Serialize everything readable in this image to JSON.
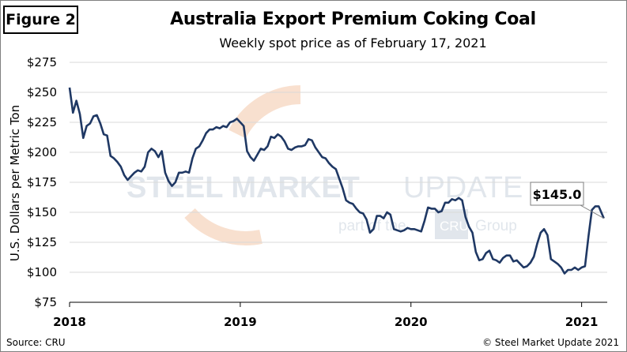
{
  "figure_label": "Figure 2",
  "chart_data": {
    "type": "line",
    "title": "Australia Export Premium Coking Coal",
    "subtitle": "Weekly spot price as of February 17, 2021",
    "ylabel": "U.S. Dollars per Metric Ton",
    "ylim": [
      75,
      275
    ],
    "yticks": [
      "$275",
      "$250",
      "$225",
      "$200",
      "$175",
      "$150",
      "$125",
      "$100",
      "$75"
    ],
    "ytick_values": [
      275,
      250,
      225,
      200,
      175,
      150,
      125,
      100,
      75
    ],
    "xlim": [
      2018.0,
      2021.15
    ],
    "xticks": [
      "2018",
      "2019",
      "2020",
      "2021"
    ],
    "xtick_values": [
      2018,
      2019,
      2020,
      2021
    ],
    "grid": "horizontal",
    "series": [
      {
        "color": "#1f3864",
        "points": [
          [
            2018.0,
            254
          ],
          [
            2018.02,
            233
          ],
          [
            2018.04,
            243
          ],
          [
            2018.06,
            232
          ],
          [
            2018.08,
            212
          ],
          [
            2018.1,
            222
          ],
          [
            2018.12,
            224
          ],
          [
            2018.14,
            230
          ],
          [
            2018.16,
            231
          ],
          [
            2018.18,
            224
          ],
          [
            2018.2,
            215
          ],
          [
            2018.22,
            214
          ],
          [
            2018.24,
            197
          ],
          [
            2018.26,
            195
          ],
          [
            2018.28,
            192
          ],
          [
            2018.3,
            188
          ],
          [
            2018.32,
            181
          ],
          [
            2018.34,
            177
          ],
          [
            2018.36,
            180
          ],
          [
            2018.38,
            183
          ],
          [
            2018.4,
            185
          ],
          [
            2018.42,
            184
          ],
          [
            2018.44,
            188
          ],
          [
            2018.46,
            200
          ],
          [
            2018.48,
            203
          ],
          [
            2018.5,
            201
          ],
          [
            2018.52,
            196
          ],
          [
            2018.54,
            201
          ],
          [
            2018.56,
            183
          ],
          [
            2018.58,
            176
          ],
          [
            2018.6,
            172
          ],
          [
            2018.62,
            175
          ],
          [
            2018.64,
            183
          ],
          [
            2018.66,
            183
          ],
          [
            2018.68,
            184
          ],
          [
            2018.7,
            183
          ],
          [
            2018.72,
            195
          ],
          [
            2018.74,
            203
          ],
          [
            2018.76,
            205
          ],
          [
            2018.78,
            210
          ],
          [
            2018.8,
            216
          ],
          [
            2018.82,
            219
          ],
          [
            2018.84,
            219
          ],
          [
            2018.86,
            221
          ],
          [
            2018.88,
            220
          ],
          [
            2018.9,
            222
          ],
          [
            2018.92,
            221
          ],
          [
            2018.94,
            225
          ],
          [
            2018.96,
            226
          ],
          [
            2018.98,
            228
          ],
          [
            2019.0,
            225
          ],
          [
            2019.02,
            222
          ],
          [
            2019.04,
            201
          ],
          [
            2019.06,
            196
          ],
          [
            2019.08,
            193
          ],
          [
            2019.1,
            198
          ],
          [
            2019.12,
            203
          ],
          [
            2019.14,
            202
          ],
          [
            2019.16,
            205
          ],
          [
            2019.18,
            213
          ],
          [
            2019.2,
            212
          ],
          [
            2019.22,
            215
          ],
          [
            2019.24,
            213
          ],
          [
            2019.26,
            209
          ],
          [
            2019.28,
            203
          ],
          [
            2019.3,
            202
          ],
          [
            2019.32,
            204
          ],
          [
            2019.34,
            205
          ],
          [
            2019.36,
            205
          ],
          [
            2019.38,
            206
          ],
          [
            2019.4,
            211
          ],
          [
            2019.42,
            210
          ],
          [
            2019.44,
            204
          ],
          [
            2019.46,
            200
          ],
          [
            2019.48,
            196
          ],
          [
            2019.5,
            195
          ],
          [
            2019.52,
            191
          ],
          [
            2019.54,
            188
          ],
          [
            2019.56,
            186
          ],
          [
            2019.58,
            178
          ],
          [
            2019.6,
            170
          ],
          [
            2019.62,
            160
          ],
          [
            2019.64,
            158
          ],
          [
            2019.66,
            157
          ],
          [
            2019.68,
            153
          ],
          [
            2019.7,
            150
          ],
          [
            2019.72,
            149
          ],
          [
            2019.74,
            144
          ],
          [
            2019.76,
            133
          ],
          [
            2019.78,
            136
          ],
          [
            2019.8,
            147
          ],
          [
            2019.82,
            147
          ],
          [
            2019.84,
            145
          ],
          [
            2019.86,
            150
          ],
          [
            2019.88,
            148
          ],
          [
            2019.9,
            136
          ],
          [
            2019.92,
            135
          ],
          [
            2019.94,
            134
          ],
          [
            2019.96,
            135
          ],
          [
            2019.98,
            137
          ],
          [
            2020.0,
            136
          ],
          [
            2020.02,
            136
          ],
          [
            2020.04,
            135
          ],
          [
            2020.06,
            134
          ],
          [
            2020.08,
            143
          ],
          [
            2020.1,
            154
          ],
          [
            2020.12,
            153
          ],
          [
            2020.14,
            153
          ],
          [
            2020.16,
            150
          ],
          [
            2020.18,
            151
          ],
          [
            2020.2,
            158
          ],
          [
            2020.22,
            158
          ],
          [
            2020.24,
            161
          ],
          [
            2020.26,
            160
          ],
          [
            2020.28,
            162
          ],
          [
            2020.3,
            160
          ],
          [
            2020.32,
            146
          ],
          [
            2020.34,
            138
          ],
          [
            2020.36,
            133
          ],
          [
            2020.38,
            117
          ],
          [
            2020.4,
            110
          ],
          [
            2020.42,
            111
          ],
          [
            2020.44,
            116
          ],
          [
            2020.46,
            118
          ],
          [
            2020.48,
            111
          ],
          [
            2020.5,
            110
          ],
          [
            2020.52,
            108
          ],
          [
            2020.54,
            112
          ],
          [
            2020.56,
            114
          ],
          [
            2020.58,
            114
          ],
          [
            2020.6,
            109
          ],
          [
            2020.62,
            110
          ],
          [
            2020.64,
            107
          ],
          [
            2020.66,
            104
          ],
          [
            2020.68,
            105
          ],
          [
            2020.7,
            108
          ],
          [
            2020.72,
            113
          ],
          [
            2020.74,
            124
          ],
          [
            2020.76,
            133
          ],
          [
            2020.78,
            136
          ],
          [
            2020.8,
            131
          ],
          [
            2020.82,
            111
          ],
          [
            2020.84,
            109
          ],
          [
            2020.86,
            107
          ],
          [
            2020.88,
            104
          ],
          [
            2020.9,
            99
          ],
          [
            2020.92,
            102
          ],
          [
            2020.94,
            102
          ],
          [
            2020.96,
            104
          ],
          [
            2020.98,
            102
          ],
          [
            2021.0,
            104
          ],
          [
            2021.02,
            105
          ],
          [
            2021.04,
            130
          ],
          [
            2021.06,
            152
          ],
          [
            2021.08,
            155
          ],
          [
            2021.1,
            155
          ],
          [
            2021.13,
            145
          ]
        ]
      }
    ],
    "annotation": {
      "text": "$145.0",
      "x": 2021.13,
      "y": 145
    }
  },
  "watermark": {
    "logo_text_1": "STEEL MARKET",
    "logo_text_2": "UPDATE",
    "tagline_1": "part of the",
    "tagline_box": "CRU",
    "tagline_2": "Group"
  },
  "source": "Source: CRU",
  "copyright": "© Steel Market Update 2021"
}
